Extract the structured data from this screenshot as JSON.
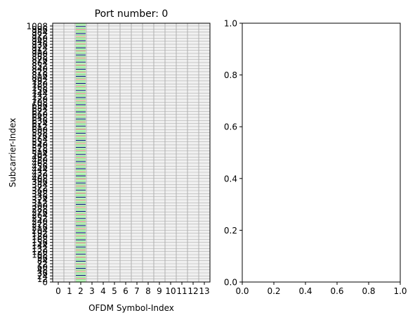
{
  "chart_data": [
    {
      "type": "heatmap",
      "title": "Port number: 0",
      "xlabel": "OFDM Symbol-Index",
      "ylabel": "Subcarrier-Index",
      "x_ticks": [
        0,
        1,
        2,
        3,
        4,
        5,
        6,
        7,
        8,
        9,
        10,
        11,
        12,
        13
      ],
      "y_tick_labels": [
        "0",
        "12",
        "24",
        "36",
        "48",
        "60",
        "72",
        "84",
        "96",
        "108",
        "120",
        "132",
        "144",
        "156",
        "168",
        "180",
        "192",
        "204",
        "216",
        "228",
        "240",
        "252",
        "264",
        "276",
        "288",
        "300",
        "312",
        "324",
        "336",
        "348",
        "360",
        "372",
        "384",
        "396",
        "408",
        "420",
        "432",
        "444",
        "456",
        "468",
        "480",
        "492",
        "504",
        "516",
        "528",
        "540",
        "552",
        "564",
        "576",
        "588",
        "600",
        "612",
        "624",
        "636",
        "648",
        "660",
        "672",
        "684",
        "696",
        "708",
        "720",
        "732",
        "744",
        "756",
        "768",
        "780",
        "792",
        "804",
        "816",
        "828",
        "840",
        "852",
        "864",
        "876",
        "888",
        "900",
        "912",
        "924",
        "936",
        "948",
        "960",
        "972",
        "984",
        "996",
        "1008"
      ],
      "y_range": [
        0,
        1019
      ],
      "grid_color": "#b0b0b0",
      "background_color": "#f0f0f0",
      "occupied_symbol": 2,
      "occupied_color_cycle": [
        "#90ee90",
        "#90ee90",
        "#90ee90",
        "#f08080",
        "#90ee90",
        "#90ee90",
        "#000080"
      ],
      "occupied_row_step": 4
    },
    {
      "type": "scatter",
      "title": "",
      "xlabel": "",
      "ylabel": "",
      "xlim": [
        0,
        1
      ],
      "ylim": [
        0,
        1
      ],
      "x_ticks": [
        "0.0",
        "0.2",
        "0.4",
        "0.6",
        "0.8",
        "1.0"
      ],
      "y_ticks": [
        "0.0",
        "0.2",
        "0.4",
        "0.6",
        "0.8",
        "1.0"
      ],
      "series": []
    }
  ]
}
